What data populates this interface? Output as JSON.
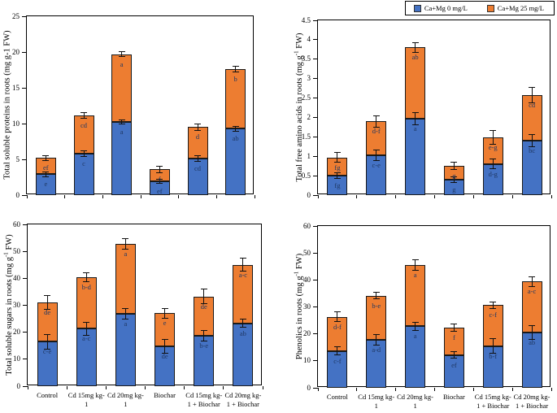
{
  "figure": {
    "background": "#ffffff"
  },
  "legend": {
    "entries": [
      {
        "label": "Ca+Mg 0 mg/L",
        "color": "#4472C4",
        "icon": "blue-square-swatch"
      },
      {
        "label": "Ca+Mg 25 mg/L",
        "color": "#ED7D31",
        "icon": "orange-square-swatch"
      }
    ]
  },
  "categories": [
    [
      "Control"
    ],
    [
      "Cd 15mg kg-",
      "1"
    ],
    [
      "Cd 20mg kg-",
      "1"
    ],
    [
      "Biochar"
    ],
    [
      "Cd 15mg kg-",
      "1 + Biochar"
    ],
    [
      "Cd 20mg kg-",
      "1 + Biochar"
    ]
  ],
  "chart_data": [
    {
      "id": "total-soluble-proteins",
      "type": "bar",
      "stacked": true,
      "position": "top-left",
      "ylabel_pre": "Total soluble proteins in roots (mg g-1 FW)",
      "ylabel_sup": "",
      "ylabel_post": "",
      "ylim": [
        0,
        25
      ],
      "yticks": [
        "0",
        "5",
        "10",
        "15",
        "20",
        "25"
      ],
      "show_x_labels": false,
      "grid": false,
      "series": [
        {
          "name": "Ca+Mg 0 mg/L",
          "color": "#4472C4",
          "values": [
            2.9,
            5.8,
            10.2,
            1.9,
            5.1,
            9.3
          ],
          "errors": [
            0.3,
            0.45,
            0.3,
            0.3,
            0.4,
            0.35
          ],
          "letters": [
            "e",
            "c",
            "a",
            "ef",
            "cd",
            "ab"
          ]
        },
        {
          "name": "Ca+Mg 25 mg/L",
          "color": "#ED7D31",
          "values": [
            2.3,
            5.3,
            9.5,
            1.7,
            4.4,
            8.3
          ],
          "errors": [
            0.35,
            0.4,
            0.35,
            0.45,
            0.45,
            0.4
          ],
          "letters": [
            "ef",
            "cd",
            "a",
            "f",
            "d",
            "b"
          ]
        }
      ],
      "stack_totals": [
        5.2,
        11.1,
        19.7,
        3.6,
        9.5,
        17.6
      ]
    },
    {
      "id": "total-free-amino-acids",
      "type": "bar",
      "stacked": true,
      "position": "top-right",
      "ylabel_pre": "Total free amino acids in roots (mg g",
      "ylabel_sup": "-1",
      "ylabel_post": " FW)",
      "ylim": [
        0,
        4.5
      ],
      "yticks": [
        "0",
        "0.5",
        "1",
        "1.5",
        "2",
        "2.5",
        "3",
        "3.5",
        "4",
        "4.5"
      ],
      "show_x_labels": false,
      "grid": false,
      "series": [
        {
          "name": "Ca+Mg 0 mg/L",
          "color": "#4472C4",
          "values": [
            0.5,
            1.03,
            1.97,
            0.4,
            0.8,
            1.4
          ],
          "errors": [
            0.07,
            0.13,
            0.15,
            0.08,
            0.13,
            0.16
          ],
          "letters": [
            "fg",
            "c-e",
            "a",
            "g",
            "d-g",
            "bc"
          ]
        },
        {
          "name": "Ca+Mg 25 mg/L",
          "color": "#ED7D31",
          "values": [
            0.47,
            0.87,
            1.83,
            0.35,
            0.68,
            1.17
          ],
          "errors": [
            0.12,
            0.15,
            0.13,
            0.1,
            0.18,
            0.2
          ],
          "letters": [
            "fg",
            "d-f",
            "ab",
            "g",
            "e-g",
            "cd"
          ]
        }
      ],
      "stack_totals": [
        0.97,
        1.9,
        3.8,
        0.75,
        1.48,
        2.57
      ]
    },
    {
      "id": "total-soluble-sugars",
      "type": "bar",
      "stacked": true,
      "position": "bottom-left",
      "ylabel_pre": "Total soluble sugars in roots (mg g",
      "ylabel_sup": "-1",
      "ylabel_post": " FW)",
      "ylim": [
        0,
        60
      ],
      "yticks": [
        "0",
        "10",
        "20",
        "30",
        "40",
        "50",
        "60"
      ],
      "show_x_labels": true,
      "grid": false,
      "series": [
        {
          "name": "Ca+Mg 0 mg/L",
          "color": "#4472C4",
          "values": [
            16.5,
            21.3,
            26.8,
            14.7,
            18.7,
            23.3
          ],
          "errors": [
            2.7,
            2.5,
            1.9,
            2.5,
            2.0,
            1.5
          ],
          "letters": [
            "c-e",
            "a-c",
            "a",
            "de",
            "b-e",
            "ab"
          ]
        },
        {
          "name": "Ca+Mg 25 mg/L",
          "color": "#ED7D31",
          "values": [
            14.5,
            19.2,
            26.0,
            12.3,
            14.6,
            21.7
          ],
          "errors": [
            2.6,
            1.7,
            1.9,
            1.8,
            2.8,
            2.4
          ],
          "letters": [
            "de",
            "b-d",
            "a",
            "e",
            "de",
            "a-c"
          ]
        }
      ],
      "stack_totals": [
        31,
        40.5,
        52.8,
        27,
        33.3,
        45
      ]
    },
    {
      "id": "phenolics",
      "type": "bar",
      "stacked": true,
      "position": "bottom-right",
      "ylabel_pre": "Phenolics in roots (mg g",
      "ylabel_sup": "-1",
      "ylabel_post": " FW)",
      "ylim": [
        0,
        60
      ],
      "yticks": [
        "0",
        "10",
        "20",
        "30",
        "40",
        "50",
        "60"
      ],
      "show_x_labels": true,
      "grid": false,
      "series": [
        {
          "name": "Ca+Mg 0 mg/L",
          "color": "#4472C4",
          "values": [
            13.7,
            17.8,
            22.8,
            12.1,
            15.5,
            20.5
          ],
          "errors": [
            1.5,
            2.0,
            1.5,
            1.2,
            2.8,
            2.7
          ],
          "letters": [
            "c-f",
            "a-d",
            "a",
            "ef",
            "b-f",
            "ab"
          ]
        },
        {
          "name": "Ca+Mg 25 mg/L",
          "color": "#ED7D31",
          "values": [
            12.6,
            16.4,
            22.8,
            10.3,
            15.2,
            18.9
          ],
          "errors": [
            1.8,
            1.3,
            2.0,
            1.3,
            1.2,
            1.9
          ],
          "letters": [
            "d-f",
            "b-e",
            "a",
            "f",
            "c-f",
            "a-c"
          ]
        }
      ],
      "stack_totals": [
        26.3,
        34.2,
        45.6,
        22.4,
        30.7,
        39.4
      ]
    }
  ]
}
